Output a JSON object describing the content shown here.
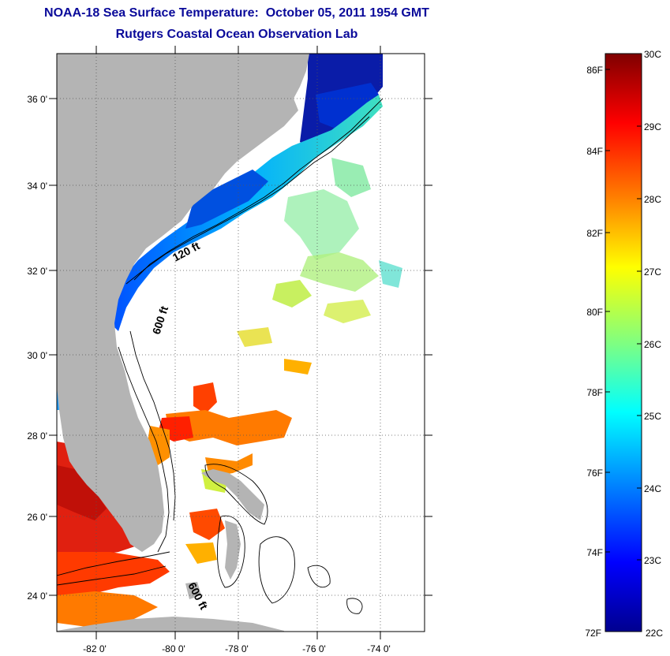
{
  "title": {
    "line1": "NOAA-18 Sea Surface Temperature:  October 05, 2011 1954 GMT",
    "line2": "Rutgers Coastal Ocean Observation Lab"
  },
  "map": {
    "lon_ticks": [
      "-82 0'",
      "-80 0'",
      "-78 0'",
      "-76 0'",
      "-74 0'"
    ],
    "lat_ticks": [
      "36 0'",
      "34 0'",
      "32 0'",
      "30 0'",
      "28 0'",
      "26 0'",
      "24 0'"
    ],
    "contour_labels": [
      "120 ft",
      "600 ft",
      "600 ft"
    ],
    "land_color": "#b4b4b4"
  },
  "colorbar": {
    "fahrenheit_labels": [
      "86F",
      "84F",
      "82F",
      "80F",
      "78F",
      "76F",
      "74F",
      "72F"
    ],
    "celsius_labels": [
      "30C",
      "29C",
      "28C",
      "27C",
      "26C",
      "25C",
      "24C",
      "23C",
      "22C"
    ],
    "colors": [
      "#7f0000",
      "#ff0000",
      "#ff8000",
      "#ffff00",
      "#80ff80",
      "#00ffff",
      "#0080ff",
      "#0000ff",
      "#00008f"
    ]
  }
}
